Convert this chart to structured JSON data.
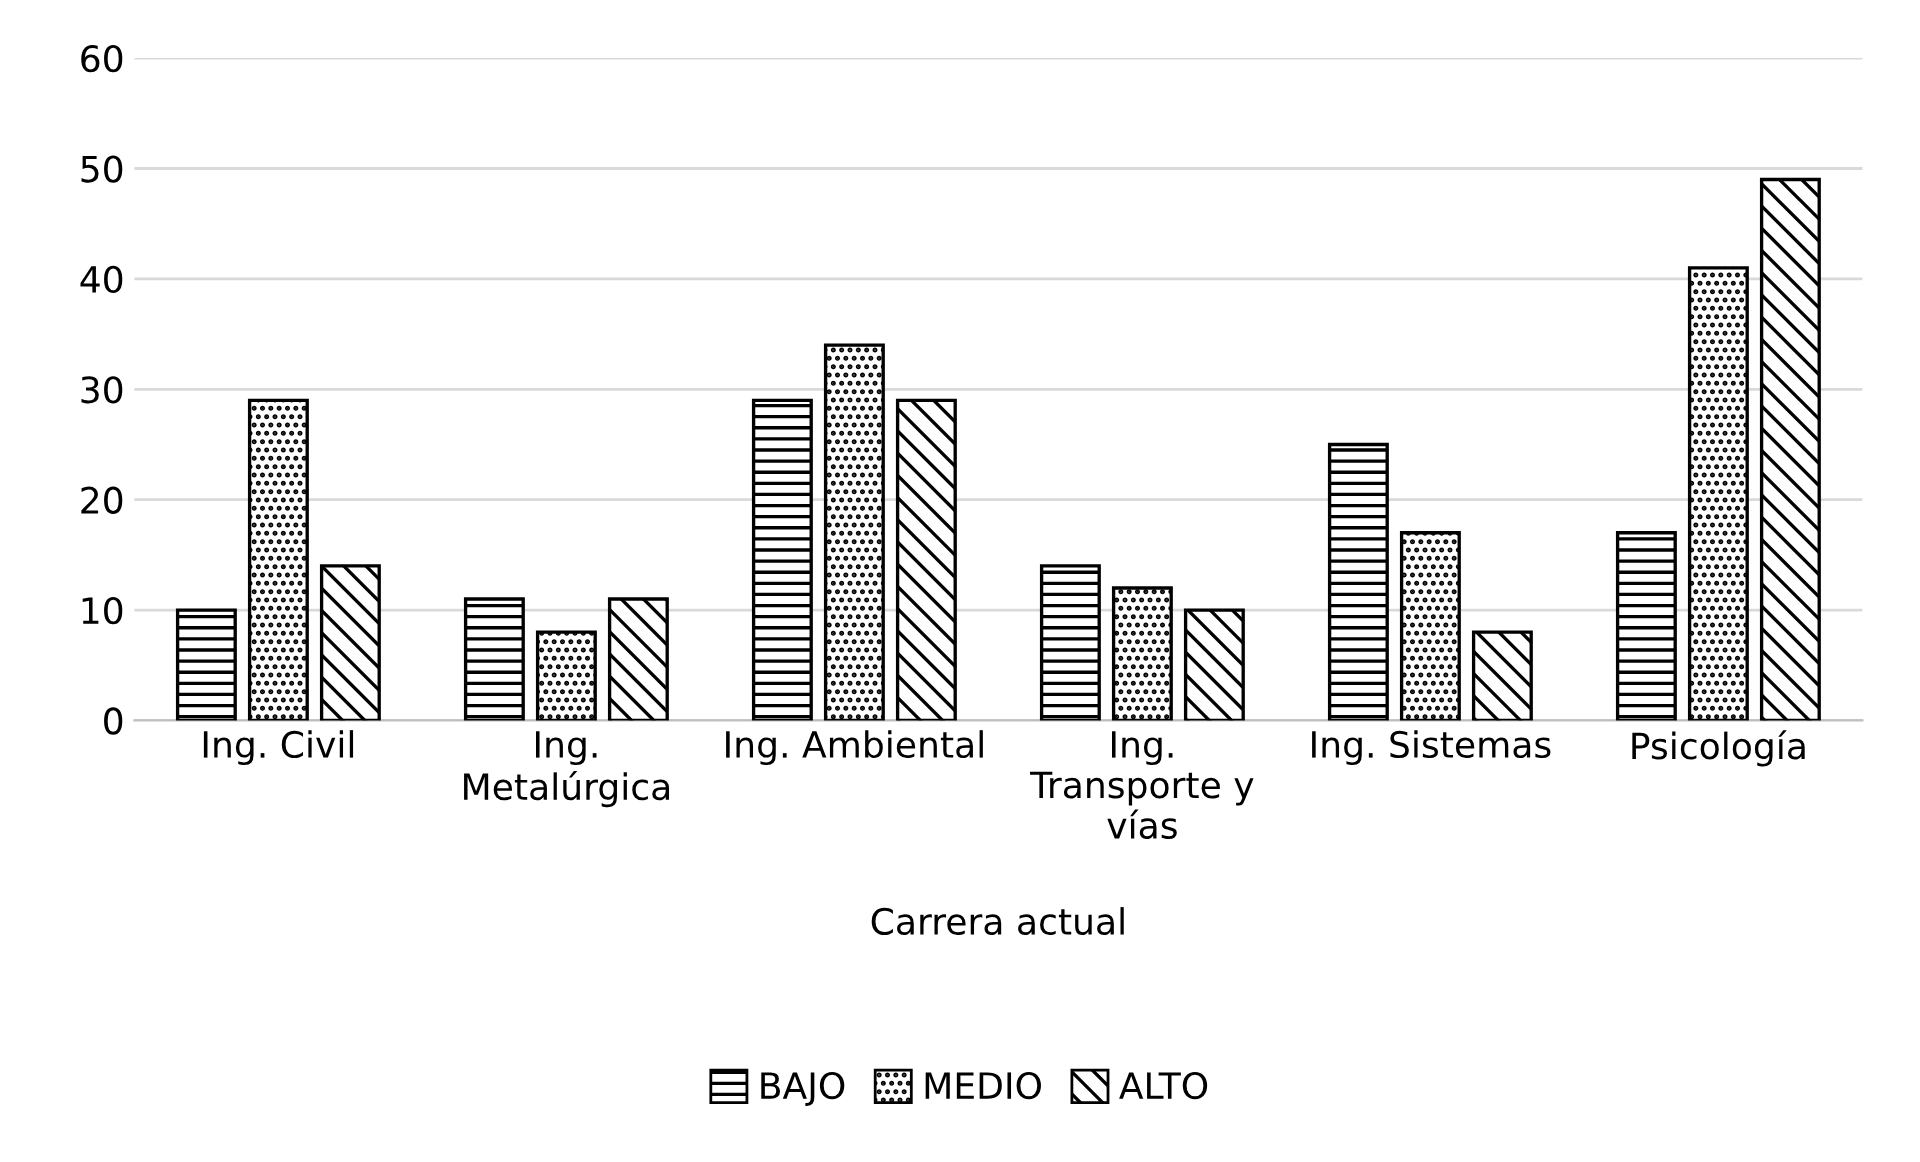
{
  "chart_data": {
    "type": "bar",
    "xlabel": "Carrera actual",
    "categories": [
      "Ing. Civil",
      "Ing.\nMetalúrgica",
      "Ing. Ambiental",
      "Ing.\nTransporte y\nvías",
      "Ing. Sistemas",
      "Psicología"
    ],
    "series": [
      {
        "name": "BAJO",
        "color": "#000000",
        "values": [
          10,
          11,
          29,
          14,
          25,
          17
        ]
      },
      {
        "name": "MEDIO",
        "color": "#000000",
        "values": [
          29,
          8,
          34,
          12,
          17,
          41
        ]
      },
      {
        "name": "ALTO",
        "color": "#000000",
        "values": [
          14,
          11,
          29,
          10,
          8,
          49
        ]
      }
    ],
    "ylim": [
      0,
      60
    ],
    "yticks": [
      0,
      10,
      20,
      30,
      40,
      50,
      60
    ],
    "grid": "y",
    "legend": "bottom"
  }
}
